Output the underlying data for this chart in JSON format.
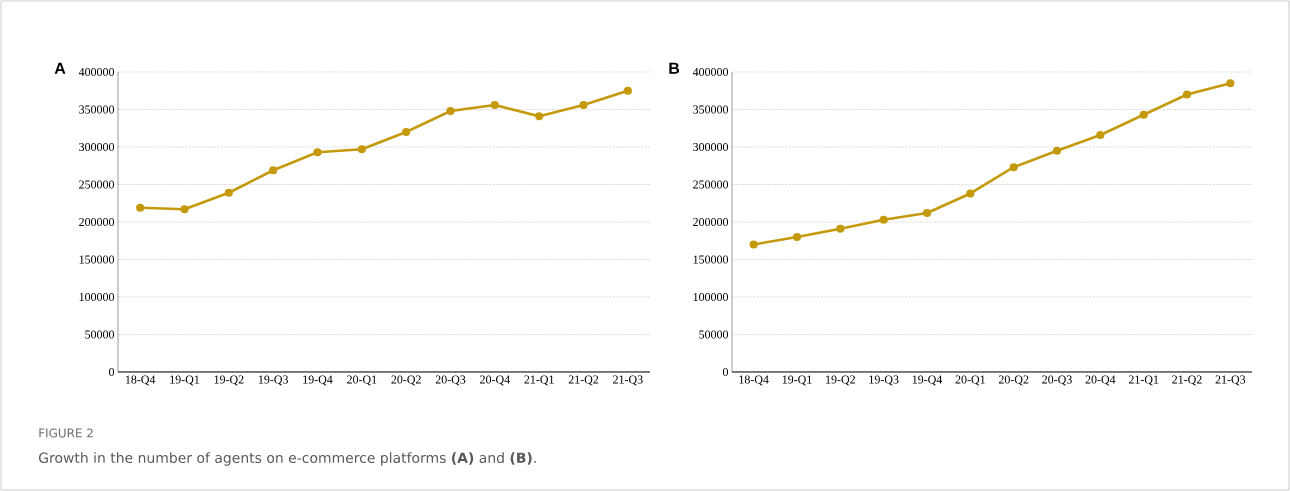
{
  "chart_data": [
    {
      "type": "line",
      "title": "A",
      "categories": [
        "18-Q4",
        "19-Q1",
        "19-Q2",
        "19-Q3",
        "19-Q4",
        "20-Q1",
        "20-Q2",
        "20-Q3",
        "20-Q4",
        "21-Q1",
        "21-Q2",
        "21-Q3"
      ],
      "series": [
        {
          "color": "#c49a0c",
          "values": [
            219000,
            217000,
            239000,
            269000,
            293000,
            297000,
            320000,
            348000,
            356000,
            341000,
            356000,
            375000
          ]
        }
      ],
      "ylim": [
        0,
        400000
      ],
      "yticks": [
        0,
        50000,
        100000,
        150000,
        200000,
        250000,
        300000,
        350000,
        400000
      ],
      "grid": "y",
      "marker": "circle",
      "line_style": "solid",
      "annotations": [
        "FIGURE 2",
        "Growth in the number of agents on e-commerce platforms **(A)** and **(B)**."
      ]
    },
    {
      "type": "line",
      "title": "B",
      "categories": [
        "18-Q4",
        "19-Q1",
        "19-Q2",
        "19-Q3",
        "19-Q4",
        "20-Q1",
        "20-Q2",
        "20-Q3",
        "20-Q4",
        "21-Q1",
        "21-Q2",
        "21-Q3"
      ],
      "series": [
        {
          "color": "#c49a0c",
          "values": [
            170000,
            180000,
            191000,
            203000,
            212000,
            238000,
            273000,
            295000,
            316000,
            343000,
            370000,
            385000
          ]
        }
      ],
      "ylim": [
        0,
        400000
      ],
      "yticks": [
        0,
        50000,
        100000,
        150000,
        200000,
        250000,
        300000,
        350000,
        400000
      ],
      "grid": "y",
      "marker": "circle",
      "line_style": "solid"
    }
  ]
}
